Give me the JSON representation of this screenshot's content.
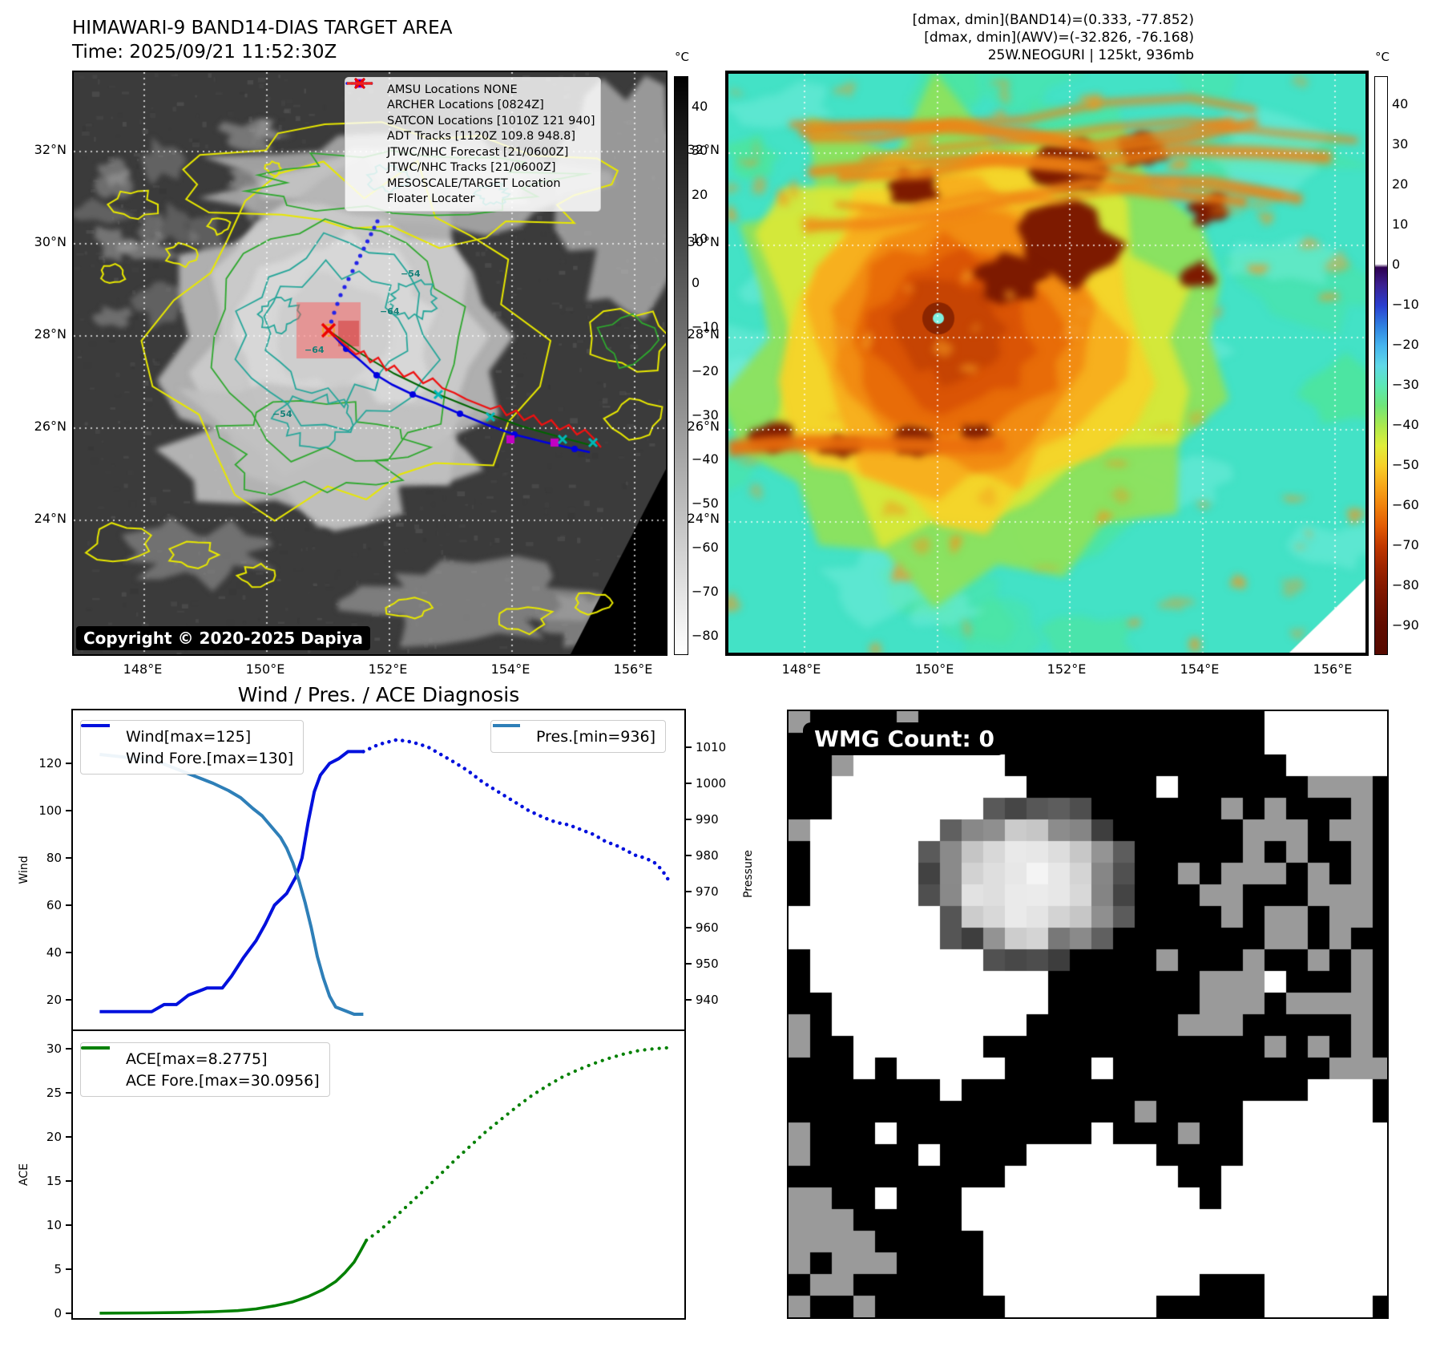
{
  "header": {
    "title_line1": "HIMAWARI-9 BAND14-DIAS TARGET AREA",
    "title_line2": "Time: 2025/09/21 11:52:30Z",
    "info_line1": "[dmax, dmin](BAND14)=(0.333, -77.852)",
    "info_line2": "[dmax, dmin](AWV)=(-32.826, -76.168)",
    "info_line3": "25W.NEOGURI | 125kt, 936mb"
  },
  "map_left": {
    "copyright": "Copyright © 2020-2025 Dapiya",
    "x_ticks": [
      "148°E",
      "150°E",
      "152°E",
      "154°E",
      "156°E"
    ],
    "y_ticks": [
      "32°N",
      "30°N",
      "28°N",
      "26°N",
      "24°N"
    ],
    "contour_labels": [
      "−54",
      "−64",
      "−64",
      "−54"
    ],
    "colorbar": {
      "unit": "°C",
      "ticks": [
        "40",
        "30",
        "20",
        "10",
        "0",
        "−10",
        "−20",
        "−30",
        "−40",
        "−50",
        "−60",
        "−70",
        "−80"
      ]
    },
    "legend": [
      {
        "label": "AMSU Locations NONE",
        "marker": "square",
        "color": "#c200c2"
      },
      {
        "label": "ARCHER Locations [0824Z]",
        "marker": "square",
        "color": "#c200c2"
      },
      {
        "label": "SATCON Locations [1010Z 121 940]",
        "marker": "x",
        "color": "#00a6a6"
      },
      {
        "label": "ADT Tracks [1120Z 109.8 948.8]",
        "marker": "line",
        "color": "#007a00"
      },
      {
        "label": "JTWC/NHC Forecast [21/0600Z]",
        "marker": "dotted",
        "color": "#2424e8"
      },
      {
        "label": "JTWC/NHC Tracks [21/0600Z]",
        "marker": "line-dot",
        "color": "#0000e0"
      },
      {
        "label": "MESOSCALE/TARGET Location",
        "marker": "x",
        "color": "#ee0000"
      },
      {
        "label": "Floater Locater",
        "marker": "line",
        "color": "#ee2222"
      }
    ]
  },
  "map_right": {
    "x_ticks": [
      "148°E",
      "150°E",
      "152°E",
      "154°E",
      "156°E"
    ],
    "y_ticks": [
      "32°N",
      "30°N",
      "28°N",
      "26°N",
      "24°N"
    ],
    "colorbar": {
      "unit": "°C",
      "ticks": [
        "40",
        "30",
        "20",
        "10",
        "0",
        "−10",
        "−20",
        "−30",
        "−40",
        "−50",
        "−60",
        "−70",
        "−80",
        "−90"
      ]
    }
  },
  "bottom_left": {
    "title": "Wind / Pres. / ACE Diagnosis",
    "ylabel_wind": "Wind",
    "ylabel_pressure": "Pressure",
    "ylabel_ace": "ACE",
    "wind_ticks": [
      "20",
      "40",
      "60",
      "80",
      "100",
      "120"
    ],
    "pressure_ticks": [
      "940",
      "950",
      "960",
      "970",
      "980",
      "990",
      "1000",
      "1010"
    ],
    "ace_ticks": [
      "0",
      "5",
      "10",
      "15",
      "20",
      "25",
      "30"
    ]
  },
  "wmg": {
    "label": "WMG Count: 0"
  },
  "chart_data": [
    {
      "type": "line",
      "title": "Wind / Pres. / ACE Diagnosis",
      "x_range": [
        0,
        1
      ],
      "ylabel_left": "Wind",
      "ylabel_right": "Pressure",
      "ylim_left": [
        7,
        143
      ],
      "ylim_right": [
        932,
        1020
      ],
      "yticks_left": [
        20,
        40,
        60,
        80,
        100,
        120
      ],
      "yticks_right": [
        940,
        950,
        960,
        970,
        980,
        990,
        1000,
        1010
      ],
      "series": [
        {
          "name": "Wind[max=125]",
          "color": "#0010dd",
          "style": "solid",
          "axis": "left",
          "points": [
            [
              0.045,
              15
            ],
            [
              0.13,
              15
            ],
            [
              0.15,
              18
            ],
            [
              0.17,
              18
            ],
            [
              0.19,
              22
            ],
            [
              0.22,
              25
            ],
            [
              0.245,
              25
            ],
            [
              0.26,
              30
            ],
            [
              0.28,
              38
            ],
            [
              0.3,
              45
            ],
            [
              0.315,
              52
            ],
            [
              0.33,
              60
            ],
            [
              0.35,
              65
            ],
            [
              0.365,
              72
            ],
            [
              0.375,
              80
            ],
            [
              0.385,
              95
            ],
            [
              0.395,
              108
            ],
            [
              0.405,
              115
            ],
            [
              0.42,
              120
            ],
            [
              0.435,
              122
            ],
            [
              0.45,
              125
            ],
            [
              0.475,
              125
            ]
          ]
        },
        {
          "name": "Wind Fore.[max=130]",
          "color": "#0010dd",
          "style": "dotted",
          "axis": "left",
          "points": [
            [
              0.475,
              125
            ],
            [
              0.5,
              128
            ],
            [
              0.53,
              130
            ],
            [
              0.555,
              129
            ],
            [
              0.58,
              127
            ],
            [
              0.6,
              124
            ],
            [
              0.62,
              121
            ],
            [
              0.645,
              117
            ],
            [
              0.67,
              112
            ],
            [
              0.695,
              108
            ],
            [
              0.72,
              104
            ],
            [
              0.745,
              100
            ],
            [
              0.77,
              97
            ],
            [
              0.79,
              95
            ],
            [
              0.81,
              94
            ],
            [
              0.83,
              92
            ],
            [
              0.85,
              90
            ],
            [
              0.87,
              87
            ],
            [
              0.89,
              85
            ],
            [
              0.905,
              83
            ],
            [
              0.92,
              81
            ],
            [
              0.935,
              80
            ],
            [
              0.95,
              78
            ],
            [
              0.962,
              75
            ],
            [
              0.972,
              71
            ]
          ]
        },
        {
          "name": "Pres.[min=936]",
          "color": "#2e7fb8",
          "style": "solid",
          "axis": "right",
          "points": [
            [
              0.045,
              1008
            ],
            [
              0.1,
              1007
            ],
            [
              0.14,
              1006
            ],
            [
              0.17,
              1004
            ],
            [
              0.2,
              1002
            ],
            [
              0.23,
              1000
            ],
            [
              0.255,
              998
            ],
            [
              0.275,
              996
            ],
            [
              0.295,
              993
            ],
            [
              0.31,
              991
            ],
            [
              0.325,
              988
            ],
            [
              0.34,
              985
            ],
            [
              0.35,
              982
            ],
            [
              0.36,
              978
            ],
            [
              0.37,
              973
            ],
            [
              0.38,
              967
            ],
            [
              0.39,
              960
            ],
            [
              0.4,
              952
            ],
            [
              0.41,
              946
            ],
            [
              0.42,
              941
            ],
            [
              0.43,
              938
            ],
            [
              0.445,
              937
            ],
            [
              0.46,
              936
            ],
            [
              0.475,
              936
            ]
          ]
        }
      ]
    },
    {
      "type": "line",
      "ylabel": "ACE",
      "ylim": [
        -0.8,
        32.2
      ],
      "yticks": [
        0,
        5,
        10,
        15,
        20,
        25,
        30
      ],
      "series": [
        {
          "name": "ACE[max=8.2775]",
          "color": "#008000",
          "style": "solid",
          "points": [
            [
              0.045,
              0.02
            ],
            [
              0.12,
              0.05
            ],
            [
              0.18,
              0.1
            ],
            [
              0.23,
              0.18
            ],
            [
              0.27,
              0.3
            ],
            [
              0.3,
              0.5
            ],
            [
              0.33,
              0.85
            ],
            [
              0.36,
              1.3
            ],
            [
              0.385,
              1.9
            ],
            [
              0.41,
              2.7
            ],
            [
              0.43,
              3.6
            ],
            [
              0.445,
              4.6
            ],
            [
              0.46,
              5.8
            ],
            [
              0.47,
              7.0
            ],
            [
              0.48,
              8.28
            ]
          ]
        },
        {
          "name": "ACE Fore.[max=30.0956]",
          "color": "#008000",
          "style": "dotted",
          "points": [
            [
              0.48,
              8.28
            ],
            [
              0.5,
              9.3
            ],
            [
              0.525,
              10.8
            ],
            [
              0.55,
              12.4
            ],
            [
              0.575,
              14.0
            ],
            [
              0.6,
              15.7
            ],
            [
              0.625,
              17.4
            ],
            [
              0.65,
              19.0
            ],
            [
              0.675,
              20.6
            ],
            [
              0.7,
              22.0
            ],
            [
              0.725,
              23.4
            ],
            [
              0.75,
              24.7
            ],
            [
              0.775,
              25.8
            ],
            [
              0.8,
              26.8
            ],
            [
              0.825,
              27.6
            ],
            [
              0.85,
              28.3
            ],
            [
              0.875,
              28.9
            ],
            [
              0.9,
              29.4
            ],
            [
              0.925,
              29.8
            ],
            [
              0.95,
              30.0
            ],
            [
              0.97,
              30.1
            ]
          ]
        }
      ]
    }
  ]
}
